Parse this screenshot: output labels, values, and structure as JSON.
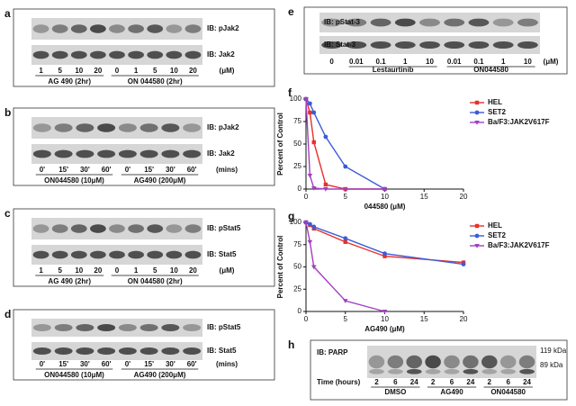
{
  "panels": [
    {
      "letter": "a",
      "blots": [
        "IB: pJak2",
        "IB: Jak2"
      ],
      "lanes": [
        "1",
        "5",
        "10",
        "20",
        "0",
        "1",
        "5",
        "10",
        "20"
      ],
      "unit": "(μM)",
      "groups": [
        "AG 490 (2hr)",
        "ON 044580 (2hr)"
      ]
    },
    {
      "letter": "b",
      "blots": [
        "IB: pJak2",
        "IB: Jak2"
      ],
      "lanes": [
        "0'",
        "15'",
        "30'",
        "60'",
        "0'",
        "15'",
        "30'",
        "60'"
      ],
      "unit": "(mins)",
      "groups": [
        "ON044580 (10μM)",
        "AG490 (200μM)"
      ]
    },
    {
      "letter": "c",
      "blots": [
        "IB: pStat5",
        "IB: Stat5"
      ],
      "lanes": [
        "1",
        "5",
        "10",
        "20",
        "0",
        "1",
        "5",
        "10",
        "20"
      ],
      "unit": "(μM)",
      "groups": [
        "AG 490 (2hr)",
        "ON 044580 (2hr)"
      ]
    },
    {
      "letter": "d",
      "blots": [
        "IB: pStat5",
        "IB: Stat5"
      ],
      "lanes": [
        "0'",
        "15'",
        "30'",
        "60'",
        "0'",
        "15'",
        "30'",
        "60'"
      ],
      "unit": "(mins)",
      "groups": [
        "ON044580 (10μM)",
        "AG490 (200μM)"
      ]
    },
    {
      "letter": "e",
      "blots": [
        "IB: pStat-3",
        "IB: Stat-3"
      ],
      "lanes": [
        "0",
        "0.01",
        "0.1",
        "1",
        "10",
        "0.01",
        "0.1",
        "1",
        "10"
      ],
      "unit": "(μM)",
      "groups": [
        "Lestaurtinib",
        "ON044580"
      ]
    },
    {
      "letter": "h",
      "blots": [
        "IB: PARP"
      ],
      "sizes": [
        "119 kDa",
        "89 kDa"
      ],
      "time_label": "Time (hours)",
      "lanes": [
        "2",
        "6",
        "24",
        "2",
        "6",
        "24",
        "2",
        "6",
        "24"
      ],
      "groups": [
        "DMSO",
        "AG490",
        "ON044580"
      ]
    }
  ],
  "chart_data": [
    {
      "type": "line",
      "label": "f",
      "x_label": "044580 (μM)",
      "y_label": "Percent of Control",
      "x": [
        0,
        0.5,
        1,
        2.5,
        5,
        10
      ],
      "xlim": [
        0,
        20
      ],
      "xticks": [
        0,
        5,
        10,
        15,
        20
      ],
      "ylim": [
        0,
        100
      ],
      "yticks": [
        0,
        25,
        50,
        75,
        100
      ],
      "series": [
        {
          "name": "HEL",
          "color": "#e8302a",
          "marker": "square",
          "values": [
            100,
            85,
            52,
            5,
            0,
            0
          ]
        },
        {
          "name": "SET2",
          "color": "#3d5bd8",
          "marker": "circle",
          "values": [
            100,
            95,
            85,
            58,
            25,
            0
          ]
        },
        {
          "name": "Ba/F3:JAK2V617F",
          "color": "#a23fbf",
          "marker": "triangle",
          "values": [
            100,
            15,
            1,
            0,
            0,
            0
          ]
        }
      ]
    },
    {
      "type": "line",
      "label": "g",
      "x_label": "AG490 (μM)",
      "y_label": "Percent of Control",
      "x": [
        0,
        0.5,
        1,
        5,
        10,
        20
      ],
      "xlim": [
        0,
        20
      ],
      "xticks": [
        0,
        5,
        10,
        15,
        20
      ],
      "ylim": [
        0,
        100
      ],
      "yticks": [
        0,
        25,
        50,
        75,
        100
      ],
      "series": [
        {
          "name": "HEL",
          "color": "#e8302a",
          "marker": "square",
          "values": [
            100,
            97,
            93,
            78,
            62,
            55
          ]
        },
        {
          "name": "SET2",
          "color": "#3d5bd8",
          "marker": "circle",
          "values": [
            100,
            98,
            95,
            82,
            65,
            53
          ]
        },
        {
          "name": "Ba/F3:JAK2V617F",
          "color": "#a23fbf",
          "marker": "triangle",
          "values": [
            100,
            78,
            50,
            12,
            0,
            null
          ]
        }
      ]
    }
  ]
}
